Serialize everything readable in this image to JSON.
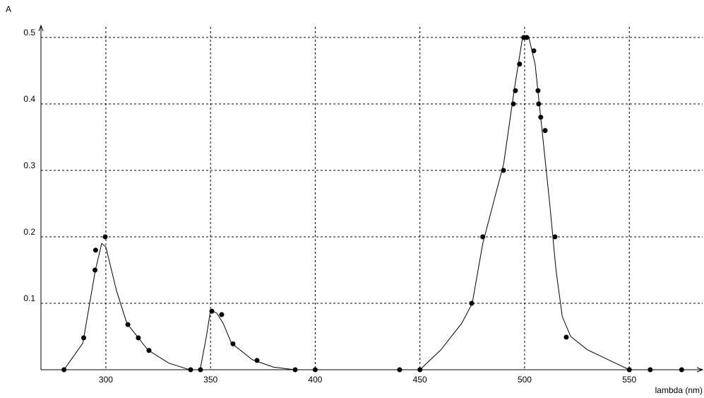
{
  "chart_data": {
    "type": "scatter",
    "y_label": "A",
    "x_label": "lambda (nm)",
    "xlim": [
      269,
      585
    ],
    "ylim": [
      0,
      0.516
    ],
    "xticks": [
      300,
      350,
      400,
      450,
      500,
      550
    ],
    "yticks": [
      0.1,
      0.2,
      0.3,
      0.4,
      0.5
    ],
    "grid": true,
    "color": "#000000",
    "points": {
      "x": [
        280,
        289.4,
        294.8,
        295.1,
        299.7,
        310.5,
        315.5,
        320.6,
        340.5,
        345.2,
        350.6,
        355.3,
        360.7,
        372.2,
        390.4,
        400,
        440.3,
        450,
        474.7,
        480,
        489.9,
        494.6,
        495.6,
        497.6,
        499.6,
        501,
        504.4,
        506.4,
        506.7,
        507.7,
        509.8,
        514.5,
        519.9,
        550,
        560,
        575
      ],
      "y": [
        0,
        0.048,
        0.15,
        0.18,
        0.2,
        0.068,
        0.048,
        0.029,
        0,
        0,
        0.088,
        0.083,
        0.039,
        0.014,
        0,
        0,
        0,
        0,
        0.1,
        0.2,
        0.3,
        0.4,
        0.42,
        0.46,
        0.5,
        0.5,
        0.48,
        0.42,
        0.4,
        0.38,
        0.36,
        0.2,
        0.049,
        0,
        0,
        0
      ]
    },
    "curve": {
      "x": [
        280,
        289,
        295,
        298,
        300,
        305,
        310,
        320,
        330,
        340,
        null,
        345,
        348,
        350,
        353,
        356,
        360,
        370,
        380,
        390,
        null,
        450,
        460,
        470,
        475,
        480,
        485,
        490,
        495,
        499,
        502,
        505,
        508,
        512,
        515,
        518,
        522,
        530,
        540,
        550
      ],
      "y": [
        0,
        0.04,
        0.15,
        0.19,
        0.185,
        0.12,
        0.07,
        0.03,
        0.01,
        0,
        null,
        0,
        0.05,
        0.09,
        0.085,
        0.07,
        0.04,
        0.015,
        0.004,
        0,
        null,
        0,
        0.03,
        0.07,
        0.1,
        0.19,
        0.25,
        0.31,
        0.42,
        0.5,
        0.5,
        0.46,
        0.37,
        0.25,
        0.15,
        0.08,
        0.05,
        0.03,
        0.015,
        0
      ]
    }
  }
}
